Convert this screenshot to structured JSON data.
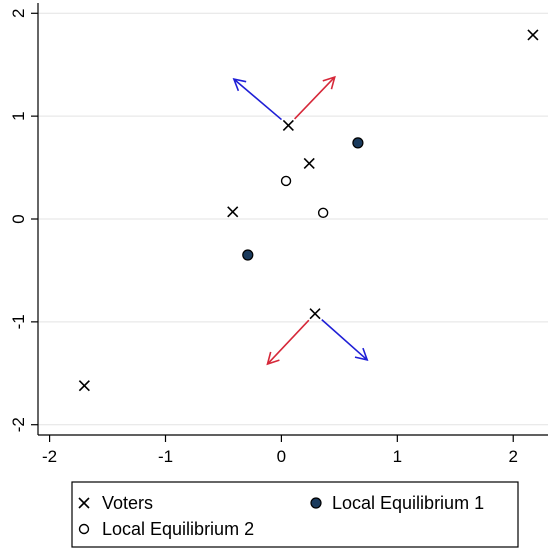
{
  "chart_data": {
    "type": "scatter",
    "xlim": [
      -2.1,
      2.3
    ],
    "ylim": [
      -2.1,
      2.1
    ],
    "x_ticks": [
      -2,
      -1,
      0,
      1,
      2
    ],
    "y_ticks": [
      -2,
      -1,
      0,
      1,
      2
    ],
    "x_tick_labels": [
      "-2",
      "-1",
      "0",
      "1",
      "2"
    ],
    "y_tick_labels": [
      "-2",
      "-1",
      "0",
      "1",
      "2"
    ],
    "grid": "horizontal",
    "legend_position": "bottom",
    "series": [
      {
        "name": "Voters",
        "marker": "x",
        "color": "#000000",
        "points": [
          {
            "x": -1.7,
            "y": -1.62
          },
          {
            "x": -0.42,
            "y": 0.07
          },
          {
            "x": 0.06,
            "y": 0.91
          },
          {
            "x": 0.24,
            "y": 0.54
          },
          {
            "x": 0.29,
            "y": -0.92
          },
          {
            "x": 2.17,
            "y": 1.79
          }
        ]
      },
      {
        "name": "Local Equilibrium 1",
        "marker": "filled-circle",
        "color": "#1a3a5c",
        "points": [
          {
            "x": -0.29,
            "y": -0.35
          },
          {
            "x": 0.66,
            "y": 0.74
          }
        ]
      },
      {
        "name": "Local Equilibrium 2",
        "marker": "hollow-circle",
        "color": "#000000",
        "points": [
          {
            "x": 0.04,
            "y": 0.37
          },
          {
            "x": 0.36,
            "y": 0.06
          }
        ]
      }
    ],
    "arrows": [
      {
        "from": [
          0.06,
          0.91
        ],
        "to": [
          -0.41,
          1.36
        ],
        "color": "#1f1fd6"
      },
      {
        "from": [
          0.06,
          0.91
        ],
        "to": [
          0.46,
          1.38
        ],
        "color": "#d62839"
      },
      {
        "from": [
          0.29,
          -0.92
        ],
        "to": [
          -0.12,
          -1.41
        ],
        "color": "#d62839"
      },
      {
        "from": [
          0.29,
          -0.92
        ],
        "to": [
          0.74,
          -1.37
        ],
        "color": "#1f1fd6"
      }
    ]
  }
}
